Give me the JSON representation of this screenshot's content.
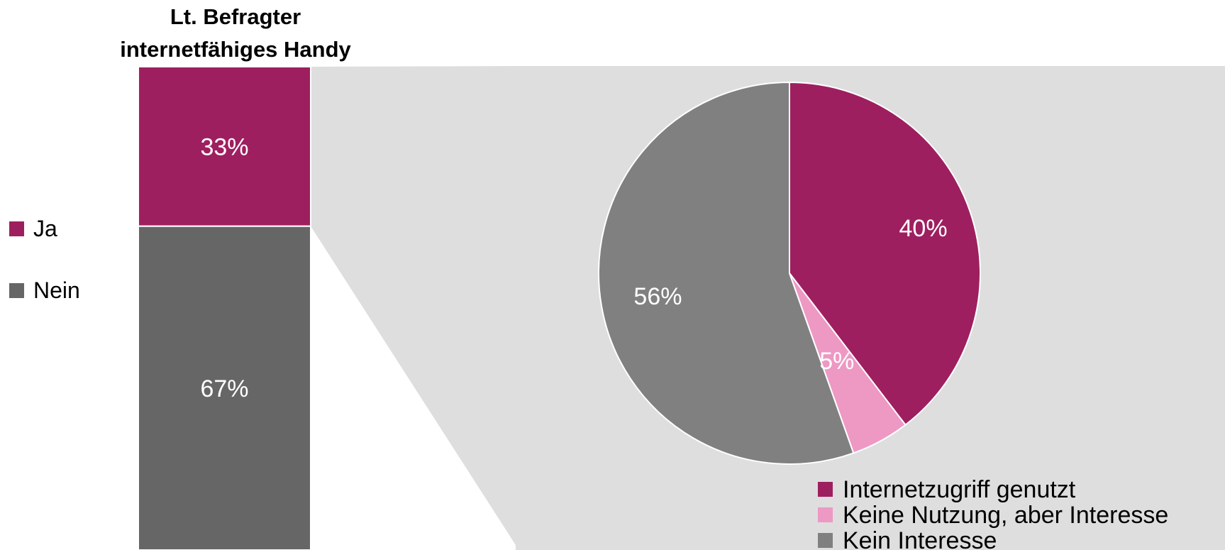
{
  "chart_data": [
    {
      "type": "bar",
      "stacked": true,
      "title": "Lt. Befragter internetfähiges Handy",
      "title_lines": [
        "Lt. Befragter",
        "internetfähiges Handy"
      ],
      "series": [
        {
          "name": "Ja",
          "value": 33,
          "label": "33%",
          "color": "#9E1F5F"
        },
        {
          "name": "Nein",
          "value": 67,
          "label": "67%",
          "color": "#666666"
        }
      ],
      "legend": {
        "placement": "left"
      }
    },
    {
      "type": "pie",
      "start_angle_deg": 0,
      "direction": "clockwise",
      "slices": [
        {
          "name": "Internetzugriff genutzt",
          "value": 40,
          "label": "40%",
          "color": "#9E1F5F"
        },
        {
          "name": "Keine Nutzung, aber Interesse",
          "value": 5,
          "label": "5%",
          "color": "#EE98C4"
        },
        {
          "name": "Kein Interesse",
          "value": 56,
          "label": "56%",
          "color": "#808080"
        }
      ],
      "legend": {
        "placement": "bottom-right"
      }
    }
  ],
  "colors": {
    "background": "#FFFFFF",
    "panel": "#DEDEDE",
    "connector": "#DEDEDE"
  }
}
